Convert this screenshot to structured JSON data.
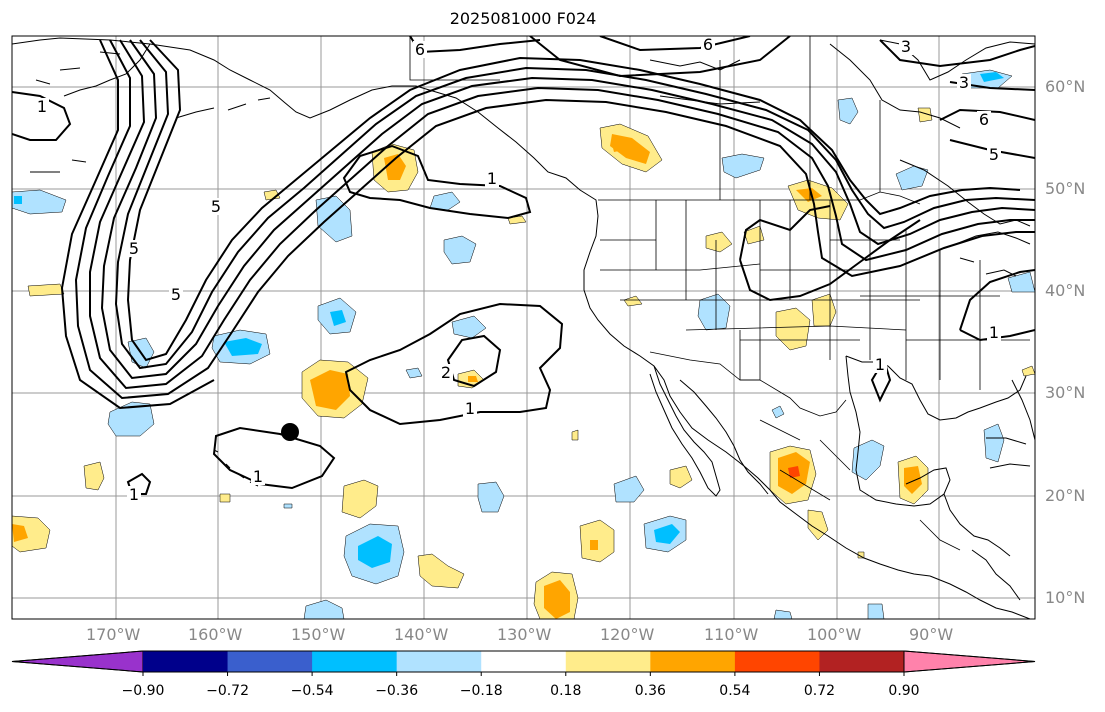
{
  "title": "2025081000 F024",
  "map": {
    "lat_labels": [
      "60°N",
      "50°N",
      "40°N",
      "30°N",
      "20°N",
      "10°N"
    ],
    "lon_labels": [
      "170°W",
      "160°W",
      "150°W",
      "140°W",
      "130°W",
      "120°W",
      "110°W",
      "100°W",
      "90°W"
    ],
    "contour_labels": [
      "6",
      "6",
      "3",
      "3",
      "6",
      "5",
      "1",
      "1",
      "1",
      "2",
      "1",
      "1",
      "1",
      "5",
      "5",
      "5",
      "1"
    ],
    "marker": "dot"
  },
  "colorbar": {
    "ticks": [
      "−0.90",
      "−0.72",
      "−0.54",
      "−0.36",
      "−0.18",
      "0.18",
      "0.36",
      "0.54",
      "0.72",
      "0.90"
    ],
    "colors": [
      "#9932cc",
      "#00008b",
      "#3a5fcd",
      "#00bfff",
      "#b0e2ff",
      "#ffffff",
      "#ffec8b",
      "#ffa500",
      "#ff4500",
      "#b22222",
      "#ff82ab"
    ]
  }
}
